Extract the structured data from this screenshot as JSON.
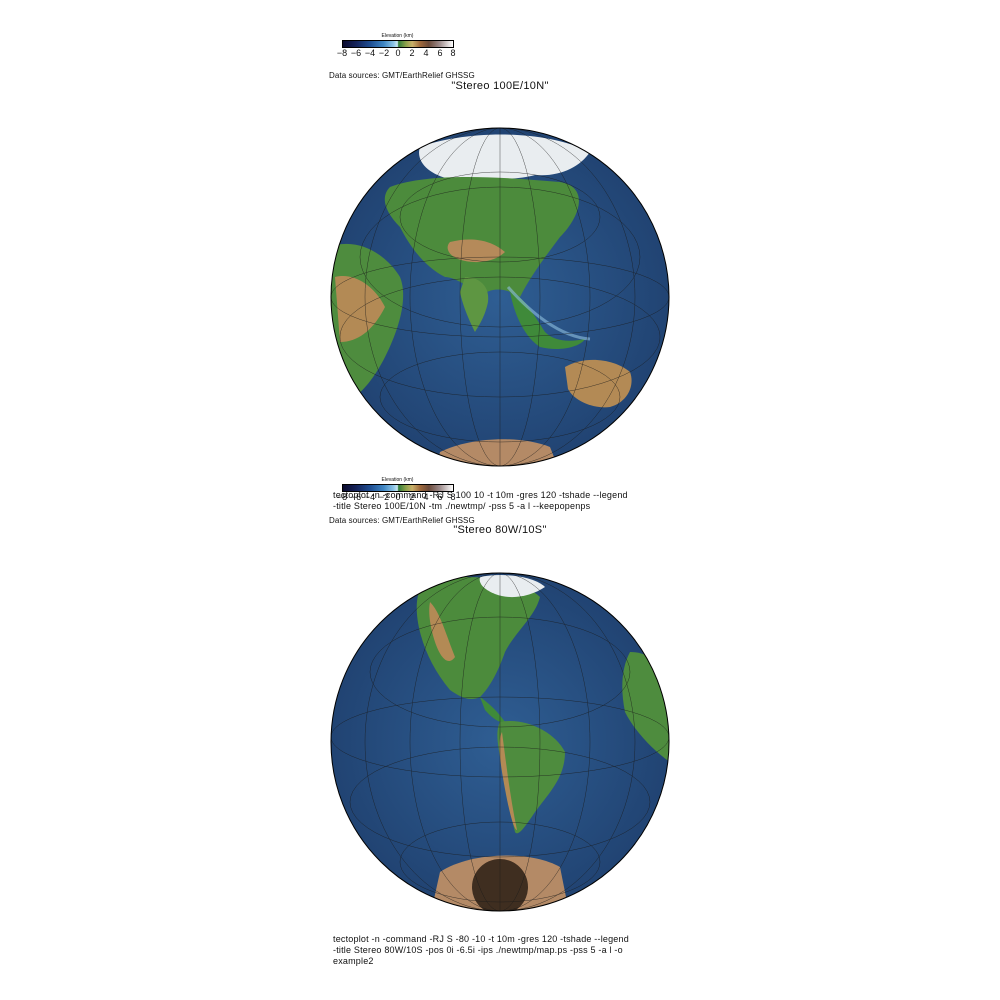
{
  "panels": [
    {
      "legend": {
        "title": "Elevation (km)",
        "ticks": [
          "−8",
          "−6",
          "−4",
          "−2",
          "0",
          "2",
          "4",
          "6",
          "8"
        ],
        "range": [
          -8,
          8
        ]
      },
      "data_sources": "Data sources: GMT/EarthRelief GHSSG",
      "title": "\"Stereo 100E/10N\"",
      "projection_center": {
        "lon": 100,
        "lat": 10
      },
      "command": "tectoplot -n -command -RJ S 100 10 -t 10m -gres 120 -tshade --legend\n-title Stereo 100E/10N -tm ./newtmp/ -pss 5 -a l --keepopenps"
    },
    {
      "legend": {
        "title": "Elevation (km)",
        "ticks": [
          "−8",
          "−6",
          "−4",
          "−2",
          "0",
          "2",
          "4",
          "6",
          "8"
        ],
        "range": [
          -8,
          8
        ]
      },
      "data_sources": "Data sources: GMT/EarthRelief GHSSG",
      "title": "\"Stereo 80W/10S\"",
      "projection_center": {
        "lon": -80,
        "lat": -10
      },
      "command": "tectoplot -n -command -RJ S -80 -10 -t 10m -gres 120 -tshade --legend\n-title Stereo 80W/10S -pos 0i -6.5i -ips ./newtmp/map.ps -pss 5 -a l -o\nexample2"
    }
  ],
  "colors": {
    "ocean_deep": "#1f3f6e",
    "ocean_shallow": "#6fa3c8",
    "lowland": "#3f8a3a",
    "highland": "#b08a55",
    "ice": "#eef1f3",
    "graticule": "#1a1a1a"
  }
}
